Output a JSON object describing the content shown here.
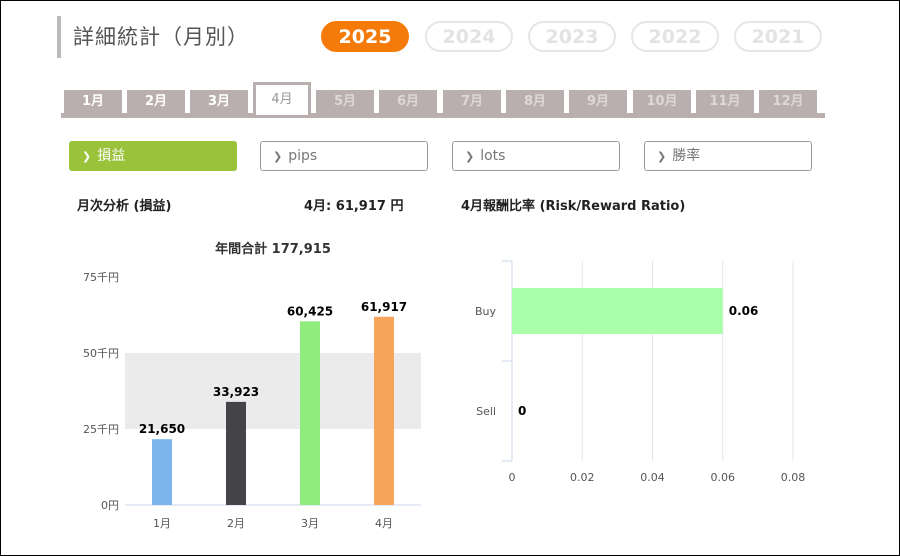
{
  "header": {
    "title": "詳細統計（月別）"
  },
  "years": [
    "2025",
    "2024",
    "2023",
    "2022",
    "2021"
  ],
  "months": [
    "1月",
    "2月",
    "3月",
    "4月",
    "5月",
    "6月",
    "7月",
    "8月",
    "9月",
    "10月",
    "11月",
    "12月"
  ],
  "filters": [
    "損益",
    "pips",
    "lots",
    "勝率"
  ],
  "section": {
    "left_title": "月次分析 (損益)",
    "month_value": "4月:  61,917 円",
    "right_title": "4月報酬比率 (Risk/Reward Ratio)"
  },
  "colors": {
    "accent": "#f47b0a",
    "active_filter": "#9ac33b",
    "tab": "#b8afae"
  },
  "chart_data": [
    {
      "type": "bar",
      "title": "年間合計 177,915",
      "categories": [
        "1月",
        "2月",
        "3月",
        "4月"
      ],
      "values": [
        21650,
        33923,
        60425,
        61917
      ],
      "value_labels": [
        "21,650",
        "33,923",
        "60,425",
        "61,917"
      ],
      "colors": [
        "#7cb5ec",
        "#434348",
        "#90ed7d",
        "#f7a35c"
      ],
      "yticks": [
        "0円",
        "25千円",
        "50千円",
        "75千円"
      ],
      "ylim": [
        0,
        75000
      ],
      "xlabel": "",
      "ylabel": ""
    },
    {
      "type": "bar",
      "orientation": "horizontal",
      "categories": [
        "Buy",
        "Sell"
      ],
      "values": [
        0.06,
        0
      ],
      "value_labels": [
        "0.06",
        "0"
      ],
      "color": "#aaffaa",
      "xticks": [
        "0",
        "0.02",
        "0.04",
        "0.06",
        "0.08"
      ],
      "xlim": [
        0,
        0.08
      ],
      "xlabel": "",
      "ylabel": ""
    }
  ]
}
